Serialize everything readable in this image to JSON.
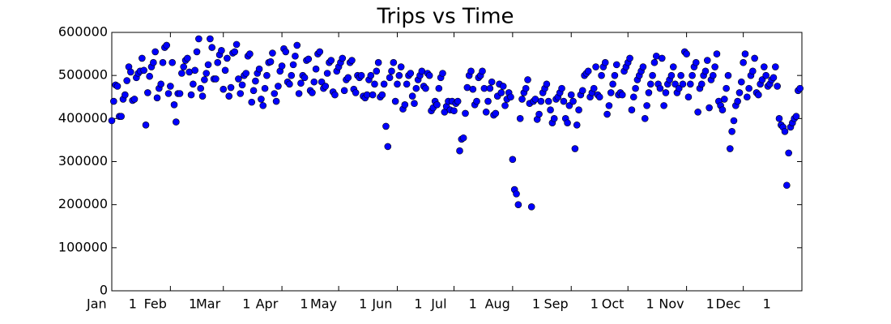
{
  "chart_data": {
    "type": "scatter",
    "title": "Trips vs Time",
    "color": "#0000ff",
    "grid": false,
    "xlim": [
      0,
      365
    ],
    "xticks": [
      {
        "value": 0,
        "label": "Jan 1"
      },
      {
        "value": 31,
        "label": "Feb 1"
      },
      {
        "value": 59,
        "label": "Mar 1"
      },
      {
        "value": 90,
        "label": "Apr 1"
      },
      {
        "value": 120,
        "label": "May 1"
      },
      {
        "value": 151,
        "label": "Jun 1"
      },
      {
        "value": 181,
        "label": "Jul 1"
      },
      {
        "value": 212,
        "label": "Aug 1"
      },
      {
        "value": 243,
        "label": "Sep 1"
      },
      {
        "value": 273,
        "label": "Oct 1"
      },
      {
        "value": 304,
        "label": "Nov 1"
      },
      {
        "value": 334,
        "label": "Dec 1"
      }
    ],
    "ylim": [
      0,
      600000
    ],
    "yticks": [
      0,
      100000,
      200000,
      300000,
      400000,
      500000,
      600000
    ],
    "x": [
      0,
      1,
      2,
      3,
      4,
      5,
      6,
      7,
      8,
      9,
      10,
      11,
      12,
      13,
      14,
      15,
      16,
      17,
      18,
      19,
      20,
      21,
      22,
      23,
      24,
      25,
      26,
      27,
      28,
      29,
      30,
      31,
      32,
      33,
      34,
      35,
      36,
      37,
      38,
      39,
      40,
      41,
      42,
      43,
      44,
      45,
      46,
      47,
      48,
      49,
      50,
      51,
      52,
      53,
      54,
      55,
      56,
      57,
      58,
      59,
      60,
      61,
      62,
      63,
      64,
      65,
      66,
      67,
      68,
      69,
      70,
      71,
      72,
      73,
      74,
      75,
      76,
      77,
      78,
      79,
      80,
      81,
      82,
      83,
      84,
      85,
      86,
      87,
      88,
      89,
      90,
      91,
      92,
      93,
      94,
      95,
      96,
      97,
      98,
      99,
      100,
      101,
      102,
      103,
      104,
      105,
      106,
      107,
      108,
      109,
      110,
      111,
      112,
      113,
      114,
      115,
      116,
      117,
      118,
      119,
      120,
      121,
      122,
      123,
      124,
      125,
      126,
      127,
      128,
      129,
      130,
      131,
      132,
      133,
      134,
      135,
      136,
      137,
      138,
      139,
      140,
      141,
      142,
      143,
      144,
      145,
      146,
      147,
      148,
      149,
      150,
      151,
      152,
      153,
      154,
      155,
      156,
      157,
      158,
      159,
      160,
      161,
      162,
      163,
      164,
      165,
      166,
      167,
      168,
      169,
      170,
      171,
      172,
      173,
      174,
      175,
      176,
      177,
      178,
      179,
      180,
      181,
      182,
      183,
      184,
      185,
      186,
      187,
      188,
      189,
      190,
      191,
      192,
      193,
      194,
      195,
      196,
      197,
      198,
      199,
      200,
      201,
      202,
      203,
      204,
      205,
      206,
      207,
      208,
      209,
      210,
      211,
      212,
      213,
      214,
      215,
      216,
      217,
      218,
      219,
      220,
      221,
      222,
      223,
      224,
      225,
      226,
      227,
      228,
      229,
      230,
      231,
      232,
      233,
      234,
      235,
      236,
      237,
      238,
      239,
      240,
      241,
      242,
      243,
      244,
      245,
      246,
      247,
      248,
      249,
      250,
      251,
      252,
      253,
      254,
      255,
      256,
      257,
      258,
      259,
      260,
      261,
      262,
      263,
      264,
      265,
      266,
      267,
      268,
      269,
      270,
      271,
      272,
      273,
      274,
      275,
      276,
      277,
      278,
      279,
      280,
      281,
      282,
      283,
      284,
      285,
      286,
      287,
      288,
      289,
      290,
      291,
      292,
      293,
      294,
      295,
      296,
      297,
      298,
      299,
      300,
      301,
      302,
      303,
      304,
      305,
      306,
      307,
      308,
      309,
      310,
      311,
      312,
      313,
      314,
      315,
      316,
      317,
      318,
      319,
      320,
      321,
      322,
      323,
      324,
      325,
      326,
      327,
      328,
      329,
      330,
      331,
      332,
      333,
      334,
      335,
      336,
      337,
      338,
      339,
      340,
      341,
      342,
      343,
      344,
      345,
      346,
      347,
      348,
      349,
      350,
      351,
      352,
      353,
      354,
      355,
      356,
      357,
      358,
      359,
      360,
      361,
      362,
      363,
      364
    ],
    "values": [
      395000,
      440000,
      478000,
      475000,
      405000,
      405000,
      445000,
      455000,
      488000,
      520000,
      508000,
      442000,
      445000,
      495000,
      505000,
      510000,
      540000,
      512000,
      385000,
      460000,
      498000,
      520000,
      530000,
      555000,
      448000,
      470000,
      480000,
      530000,
      565000,
      570000,
      458000,
      475000,
      530000,
      432000,
      392000,
      458000,
      458000,
      505000,
      520000,
      535000,
      540000,
      508000,
      455000,
      480000,
      512000,
      555000,
      585000,
      470000,
      452000,
      490000,
      505000,
      525000,
      585000,
      565000,
      492000,
      492000,
      530000,
      548000,
      558000,
      468000,
      512000,
      540000,
      452000,
      472000,
      552000,
      555000,
      572000,
      492000,
      458000,
      478000,
      500000,
      505000,
      545000,
      550000,
      438000,
      465000,
      487000,
      505000,
      515000,
      445000,
      430000,
      470000,
      500000,
      530000,
      532000,
      552000,
      458000,
      440000,
      475000,
      510000,
      522000,
      562000,
      555000,
      485000,
      480000,
      500000,
      525000,
      545000,
      570000,
      458000,
      482000,
      500000,
      495000,
      535000,
      538000,
      465000,
      460000,
      485000,
      515000,
      550000,
      555000,
      485000,
      470000,
      475000,
      505000,
      530000,
      535000,
      462000,
      455000,
      510000,
      520000,
      530000,
      540000,
      465000,
      490000,
      495000,
      530000,
      535000,
      468000,
      460000,
      500000,
      495000,
      500000,
      452000,
      448000,
      455000,
      490000,
      500000,
      455000,
      480000,
      510000,
      530000,
      450000,
      455000,
      480000,
      382000,
      335000,
      495000,
      510000,
      530000,
      440000,
      480000,
      500000,
      520000,
      422000,
      432000,
      480000,
      500000,
      505000,
      452000,
      435000,
      470000,
      490000,
      500000,
      510000,
      475000,
      470000,
      505000,
      500000,
      418000,
      425000,
      440000,
      432000,
      470000,
      495000,
      505000,
      415000,
      428000,
      440000,
      420000,
      440000,
      418000,
      435000,
      440000,
      325000,
      352000,
      355000,
      412000,
      472000,
      500000,
      510000,
      468000,
      432000,
      440000,
      495000,
      500000,
      510000,
      470000,
      415000,
      440000,
      470000,
      485000,
      408000,
      412000,
      452000,
      480000,
      460000,
      475000,
      430000,
      445000,
      460000,
      450000,
      305000,
      235000,
      225000,
      200000,
      400000,
      445000,
      460000,
      470000,
      490000,
      435000,
      195000,
      440000,
      445000,
      398000,
      410000,
      440000,
      460000,
      470000,
      480000,
      440000,
      420000,
      390000,
      400000,
      445000,
      450000,
      460000,
      470000,
      440000,
      400000,
      390000,
      430000,
      455000,
      440000,
      330000,
      385000,
      420000,
      455000,
      465000,
      500000,
      505000,
      510000,
      450000,
      460000,
      470000,
      520000,
      455000,
      450000,
      500000,
      520000,
      530000,
      410000,
      430000,
      460000,
      480000,
      500000,
      525000,
      455000,
      460000,
      455000,
      510000,
      520000,
      530000,
      540000,
      420000,
      450000,
      470000,
      490000,
      500000,
      510000,
      520000,
      400000,
      430000,
      460000,
      480000,
      500000,
      530000,
      545000,
      480000,
      470000,
      540000,
      430000,
      460000,
      480000,
      490000,
      500000,
      520000,
      480000,
      460000,
      470000,
      500000,
      480000,
      555000,
      550000,
      450000,
      480000,
      500000,
      520000,
      530000,
      415000,
      470000,
      480000,
      500000,
      510000,
      535000,
      425000,
      490000,
      500000,
      520000,
      550000,
      440000,
      430000,
      420000,
      445000,
      470000,
      500000,
      330000,
      370000,
      395000,
      430000,
      440000,
      460000,
      485000,
      530000,
      550000,
      450000,
      470000,
      500000,
      510000,
      540000,
      460000,
      455000,
      480000,
      490000,
      520000,
      500000,
      475000,
      480000,
      490000,
      495000,
      520000,
      475000,
      400000,
      385000,
      380000,
      370000,
      245000,
      320000,
      380000,
      390000,
      400000,
      405000,
      465000,
      470000
    ]
  }
}
